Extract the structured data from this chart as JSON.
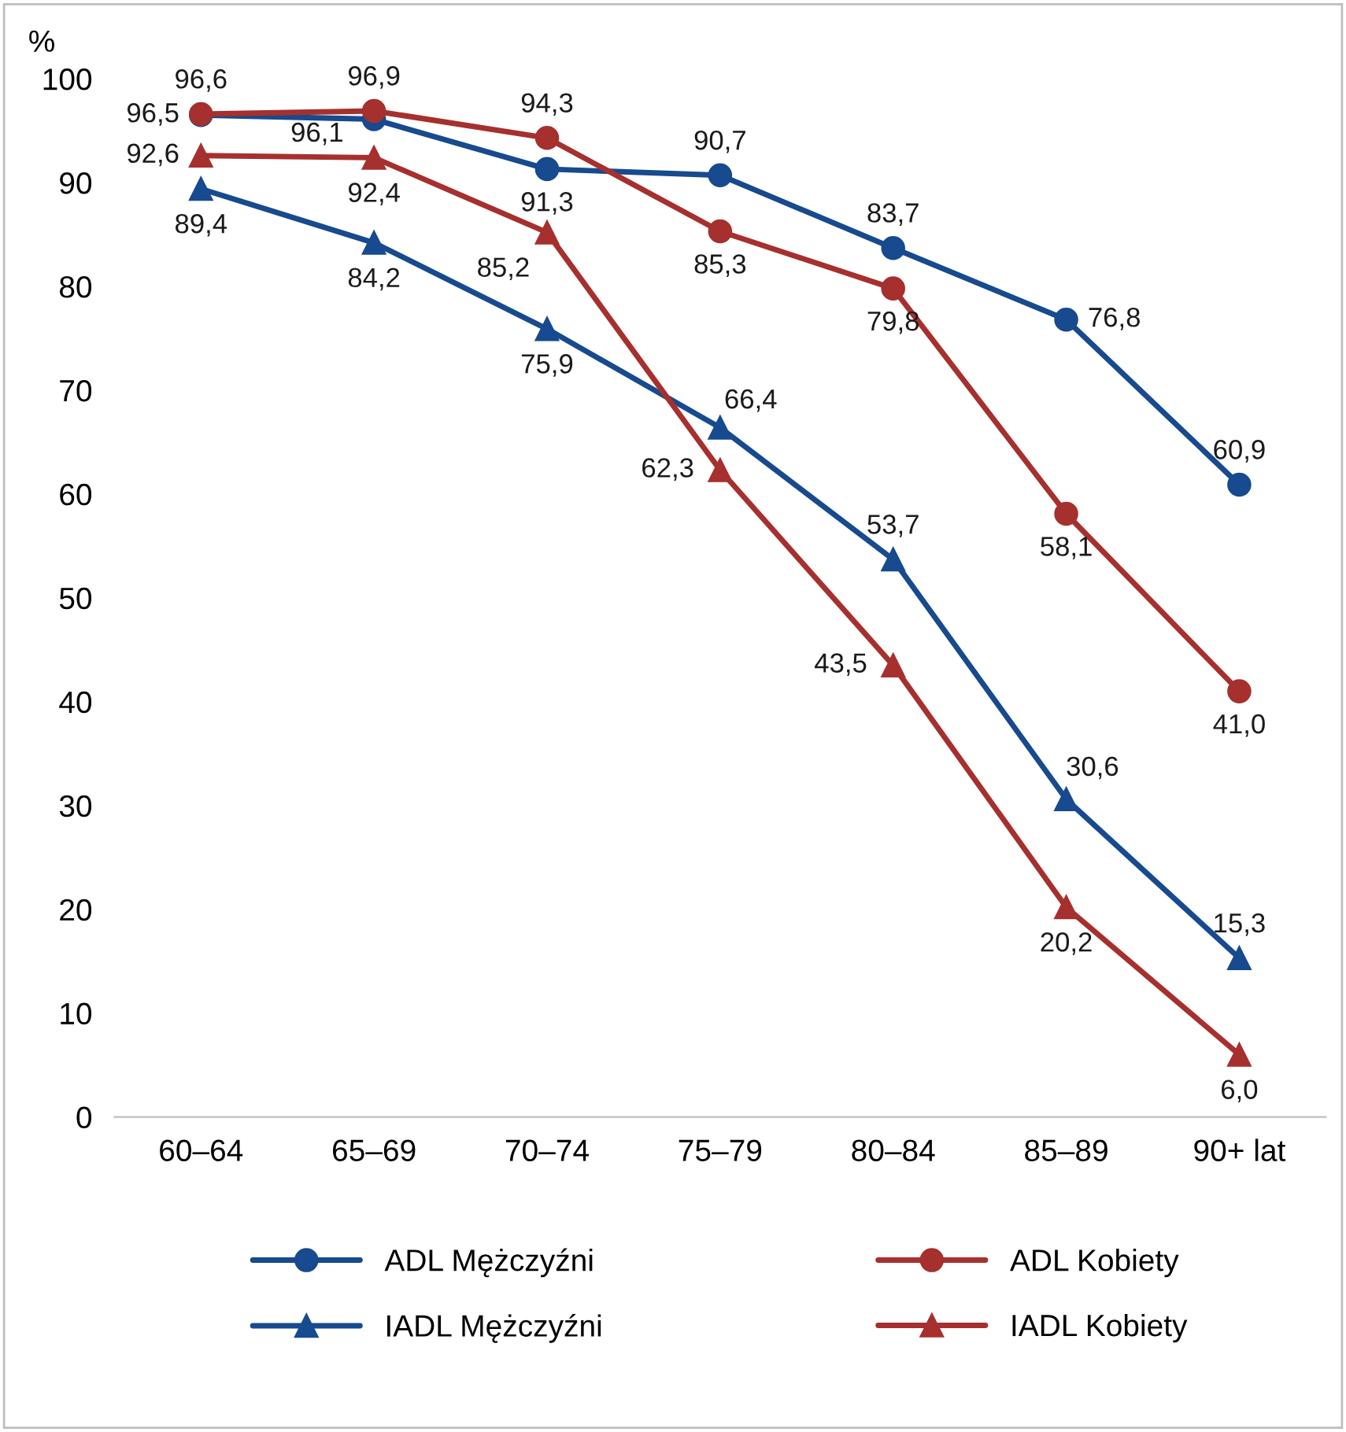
{
  "chart_data": {
    "type": "line",
    "ylabel": "%",
    "categories": [
      "60–64",
      "65–69",
      "70–74",
      "75–79",
      "80–84",
      "85–89",
      "90+ lat"
    ],
    "ylim": [
      0,
      100
    ],
    "yticks": [
      0,
      10,
      20,
      30,
      40,
      50,
      60,
      70,
      80,
      90,
      100
    ],
    "grid": false,
    "legend": "bottom",
    "line_style": "solid",
    "series": [
      {
        "name": "ADL Mężczyźni",
        "color": "#174a8e",
        "marker": "circle",
        "values": [
          96.5,
          96.1,
          91.3,
          90.7,
          83.7,
          76.8,
          60.9
        ],
        "value_labels": [
          "96,5",
          "96,1",
          "91,3",
          "90,7",
          "83,7",
          "76,8",
          "60,9"
        ]
      },
      {
        "name": "ADL Kobiety",
        "color": "#a6302e",
        "marker": "circle",
        "values": [
          96.6,
          96.9,
          94.3,
          85.3,
          79.8,
          58.1,
          41.0
        ],
        "value_labels": [
          "96,6",
          "96,9",
          "94,3",
          "85,3",
          "79,8",
          "58,1",
          "41,0"
        ]
      },
      {
        "name": "IADL Mężczyźni",
        "color": "#174a8e",
        "marker": "triangle",
        "values": [
          89.4,
          84.2,
          75.9,
          66.4,
          53.7,
          30.6,
          15.3
        ],
        "value_labels": [
          "89,4",
          "84,2",
          "75,9",
          "66,4",
          "53,7",
          "30,6",
          "15,3"
        ]
      },
      {
        "name": "IADL Kobiety",
        "color": "#a6302e",
        "marker": "triangle",
        "values": [
          92.6,
          92.4,
          85.2,
          62.3,
          43.5,
          20.2,
          6.0
        ],
        "value_labels": [
          "92,6",
          "92,4",
          "85,2",
          "62,3",
          "43,5",
          "20,2",
          "6,0"
        ]
      }
    ]
  }
}
